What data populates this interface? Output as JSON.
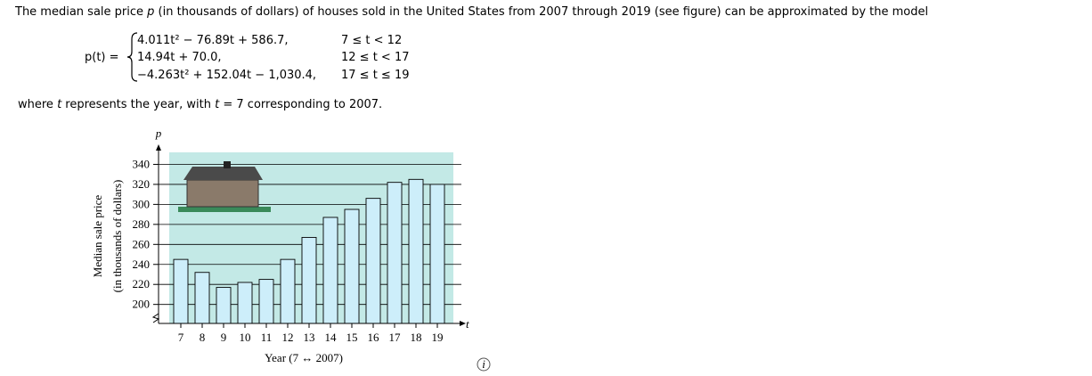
{
  "intro": [
    "The median sale price ",
    "p",
    " (in thousands of dollars) of houses sold in the United States from 2007 through 2019 (see figure) can be approximated by the model"
  ],
  "model": {
    "lhs": "p(t) =",
    "pieces": [
      {
        "expression": "4.011t² − 76.89t + 586.7,",
        "condition": "7 ≤ t < 12"
      },
      {
        "expression": "14.94t + 70.0,",
        "condition": "12 ≤ t < 17"
      },
      {
        "expression": "−4.263t² + 152.04t − 1,030.4,",
        "condition": "17 ≤ t ≤ 19"
      }
    ]
  },
  "outro": [
    "where ",
    "t",
    " represents the year, with ",
    "t",
    " = 7 corresponding to 2007."
  ],
  "chart_data": {
    "type": "bar",
    "y_axis_label": [
      "Median sale price",
      "(in thousands of dollars)"
    ],
    "x_axis_label": "Year (7 ↔ 2007)",
    "y_axis_symbol": "p",
    "x_axis_symbol": "t",
    "categories": [
      7,
      8,
      9,
      10,
      11,
      12,
      13,
      14,
      15,
      16,
      17,
      18,
      19
    ],
    "values": [
      245,
      232,
      217,
      222,
      225,
      245,
      267,
      287,
      295,
      306,
      322,
      325,
      320
    ],
    "color": "#cdeefa",
    "background": "#c3e9e6",
    "ylim": [
      181,
      352
    ],
    "yticks": [
      200,
      220,
      240,
      260,
      280,
      300,
      320,
      340
    ],
    "grid": true
  },
  "info_icon": "i"
}
